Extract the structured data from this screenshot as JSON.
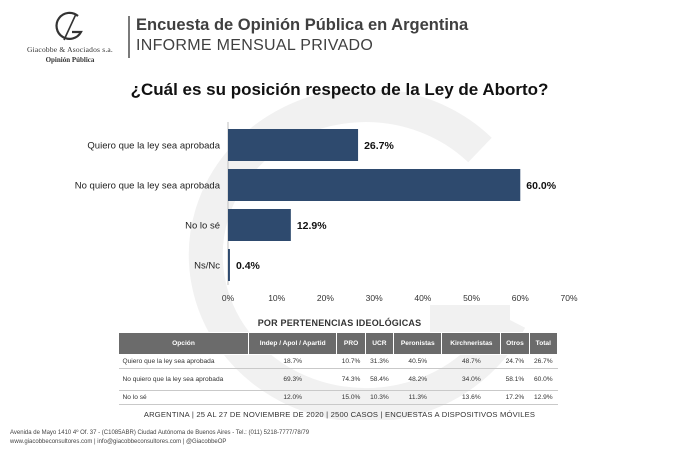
{
  "header": {
    "logo_company": "Giacobbe & Asociados s.a.",
    "logo_sub": "Opinión Pública",
    "title": "Encuesta de Opinión Pública en Argentina",
    "subtitle": "INFORME MENSUAL PRIVADO"
  },
  "question": "¿Cuál es su posición respecto de la Ley de Aborto?",
  "colors": {
    "bar": "#2e4a6e",
    "table_header": "#6b6b6b"
  },
  "chart_data": {
    "type": "bar",
    "orientation": "horizontal",
    "title": "",
    "categories": [
      "Quiero que la ley sea aprobada",
      "No quiero que la ley sea aprobada",
      "No lo sé",
      "Ns/Nc"
    ],
    "values": [
      26.7,
      60.0,
      12.9,
      0.4
    ],
    "value_labels": [
      "26.7%",
      "60.0%",
      "12.9%",
      "0.4%"
    ],
    "xlim": [
      0,
      70
    ],
    "xticks": [
      "0%",
      "10%",
      "20%",
      "30%",
      "40%",
      "50%",
      "60%",
      "70%"
    ],
    "grid": false
  },
  "table": {
    "title": "POR PERTENENCIAS IDEOLÓGICAS",
    "headers": [
      "Opción",
      "Indep / Apol / Apartid",
      "PRO",
      "UCR",
      "Peronistas",
      "Kirchneristas",
      "Otros",
      "Total"
    ],
    "rows": [
      {
        "label": "Quiero que la ley sea aprobada",
        "values": [
          "18.7%",
          "10.7%",
          "31.3%",
          "40.5%",
          "48.7%",
          "24.7%",
          "26.7%"
        ]
      },
      {
        "label": "No quiero que la ley sea aprobada",
        "values": [
          "69.3%",
          "74.3%",
          "58.4%",
          "48.2%",
          "34.0%",
          "58.1%",
          "60.0%"
        ]
      },
      {
        "label": "No lo sé",
        "values": [
          "12.0%",
          "15.0%",
          "10.3%",
          "11.3%",
          "13.6%",
          "17.2%",
          "12.9%"
        ]
      }
    ]
  },
  "footer": {
    "note": "ARGENTINA | 25 AL 27 DE NOVIEMBRE DE 2020 | 2500 CASOS | ENCUESTAS A DISPOSITIVOS MÓVILES",
    "address": "Avenida de Mayo 1410 4º Of. 37 - (C1085ABR) Ciudad Autónoma de Buenos Aires - Tel.: (011) 5218-7777/78/79",
    "contact": "www.giacobbeconsultores.com | info@giacobbeconsultores.com | @GiacobbeOP"
  }
}
